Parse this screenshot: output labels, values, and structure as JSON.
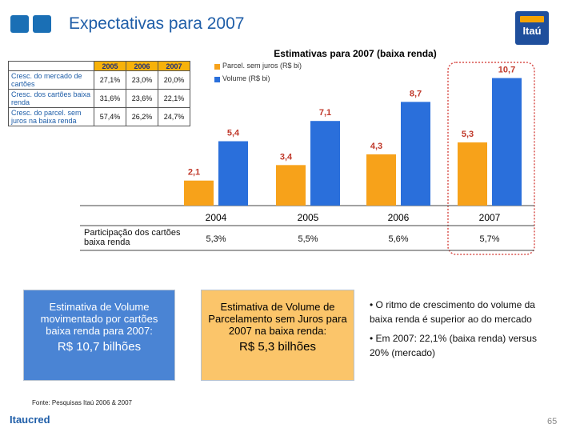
{
  "header": {
    "title": "Expectativas para 2007",
    "logo_text": "Itaú"
  },
  "growth_table": {
    "years": [
      "2005",
      "2006",
      "2007"
    ],
    "rows": [
      {
        "label": "Cresc. do mercado de cartões",
        "values": [
          "27,1%",
          "23,0%",
          "20,0%"
        ]
      },
      {
        "label": "Cresc. dos cartões baixa renda",
        "values": [
          "31,6%",
          "23,6%",
          "22,1%"
        ]
      },
      {
        "label": "Cresc. do parcel. sem juros na baixa renda",
        "values": [
          "57,4%",
          "26,2%",
          "24,7%"
        ]
      }
    ]
  },
  "share_row": {
    "label": "Participação dos cartões baixa renda",
    "values": [
      "5,3%",
      "5,5%",
      "5,6%",
      "5,7%"
    ]
  },
  "chart_data": {
    "type": "bar",
    "title": "Estimativas para 2007 (baixa renda)",
    "categories": [
      "2004",
      "2005",
      "2006",
      "2007"
    ],
    "series": [
      {
        "name": "Parcel. sem juros (R$ bi)",
        "values": [
          2.1,
          3.4,
          4.3,
          5.3
        ],
        "labels": [
          "2,1",
          "3,4",
          "4,3",
          "5,3"
        ],
        "color": "#f7a21a"
      },
      {
        "name": "Volume (R$ bi)",
        "values": [
          5.4,
          7.1,
          8.7,
          10.7
        ],
        "labels": [
          "5,4",
          "7,1",
          "8,7",
          "10,7"
        ],
        "color": "#2a6fdb"
      }
    ],
    "ylim": [
      0,
      12
    ],
    "grid": false,
    "legend": "top-left",
    "highlight_category": "2007"
  },
  "boxes": {
    "volume": {
      "text": "Estimativa de Volume movimentado por cartões baixa renda para 2007:",
      "amount": "R$ 10,7 bilhões"
    },
    "installments": {
      "text": "Estimativa de Volume de Parcelamento sem Juros para 2007 na baixa renda:",
      "amount": "R$ 5,3 bilhões"
    }
  },
  "bullets": [
    "• O ritmo de crescimento do volume da baixa renda é superior ao do mercado",
    "• Em 2007: 22,1% (baixa renda) versus 20% (mercado)"
  ],
  "footer": {
    "source": "Fonte: Pesquisas Itaú 2006 & 2007",
    "brand": "Itaucred",
    "page": "65"
  },
  "colors": {
    "accent_blue": "#1f5ea8",
    "orange": "#f7a21a",
    "bar_blue": "#2a6fdb",
    "highlight_red": "#d9534f"
  }
}
